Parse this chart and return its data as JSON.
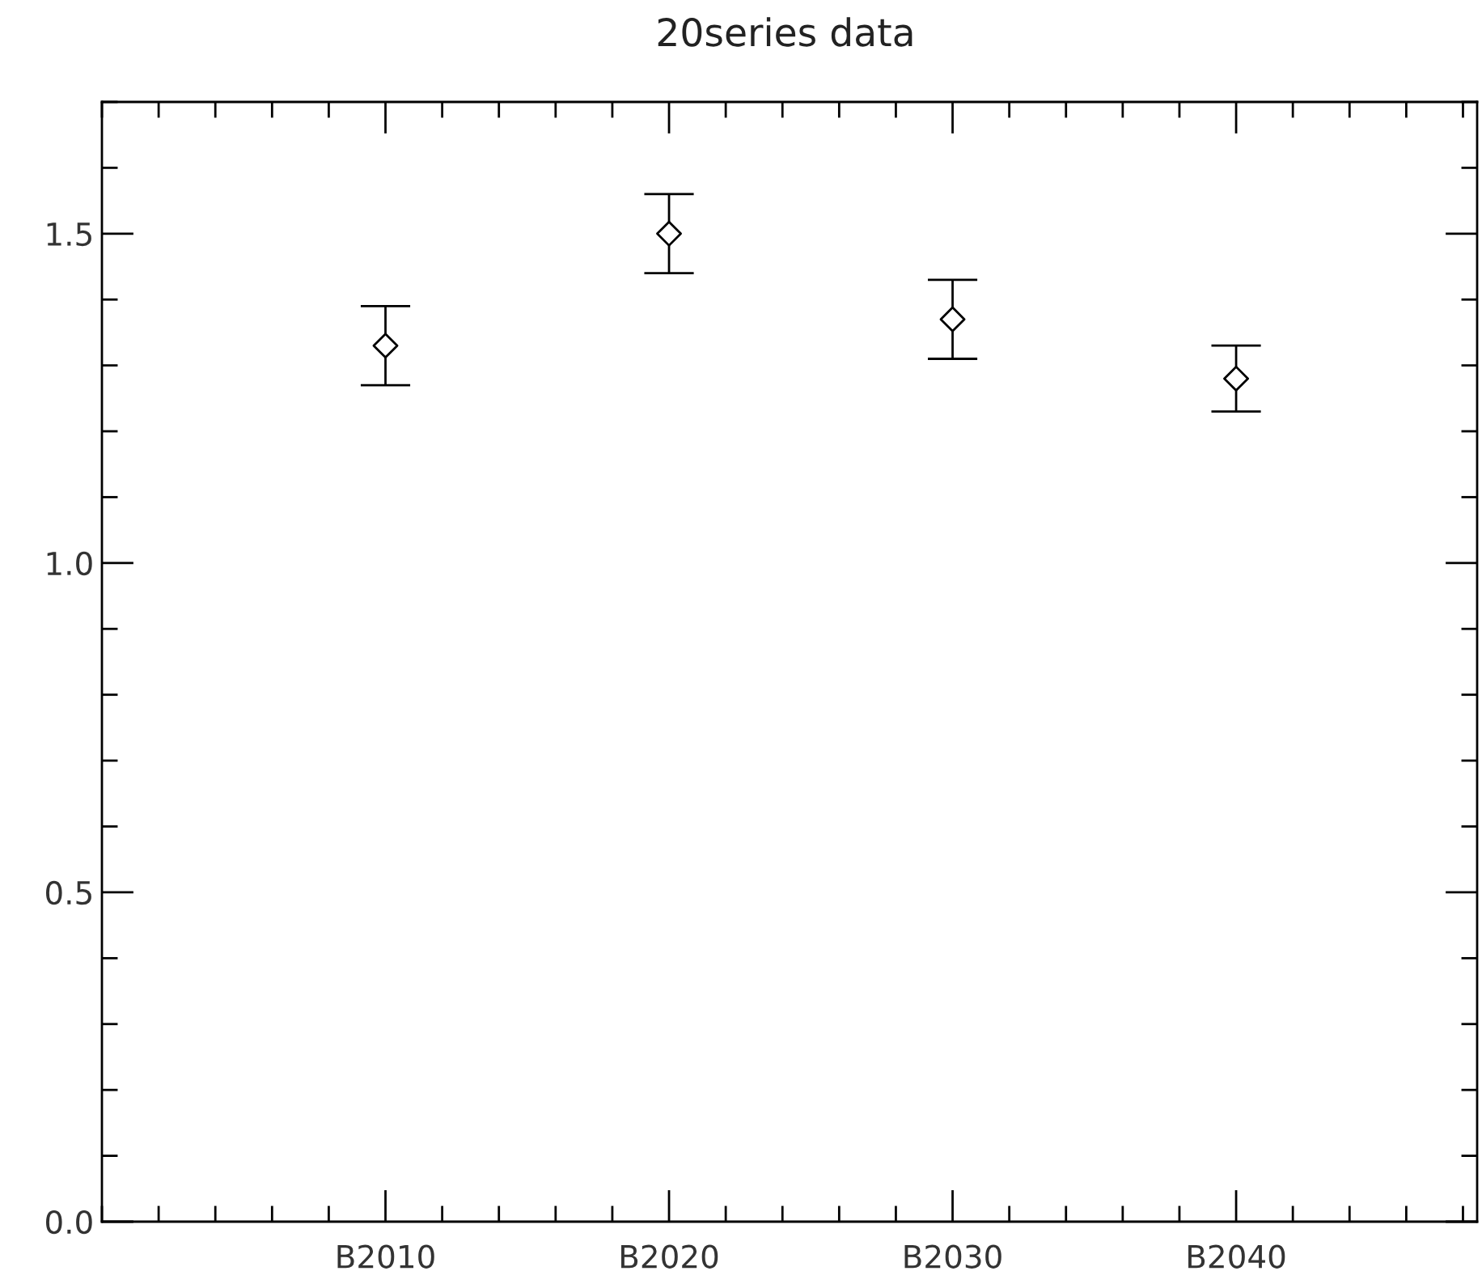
{
  "chart_data": {
    "type": "scatter",
    "title": "20series data",
    "categories": [
      "B2010",
      "B2020",
      "B2030",
      "B2040"
    ],
    "series": [
      {
        "color": "#000000",
        "values": [
          1.33,
          1.5,
          1.37,
          1.28
        ],
        "errors": [
          0.06,
          0.06,
          0.06,
          0.05
        ]
      }
    ],
    "marker": "diamond",
    "grid": false,
    "ylim": [
      0,
      1.7
    ],
    "yticks": [
      {
        "value": 0,
        "label": "0.0"
      },
      0.5,
      {
        "value": 1,
        "label": "1.0"
      },
      1.5
    ]
  }
}
